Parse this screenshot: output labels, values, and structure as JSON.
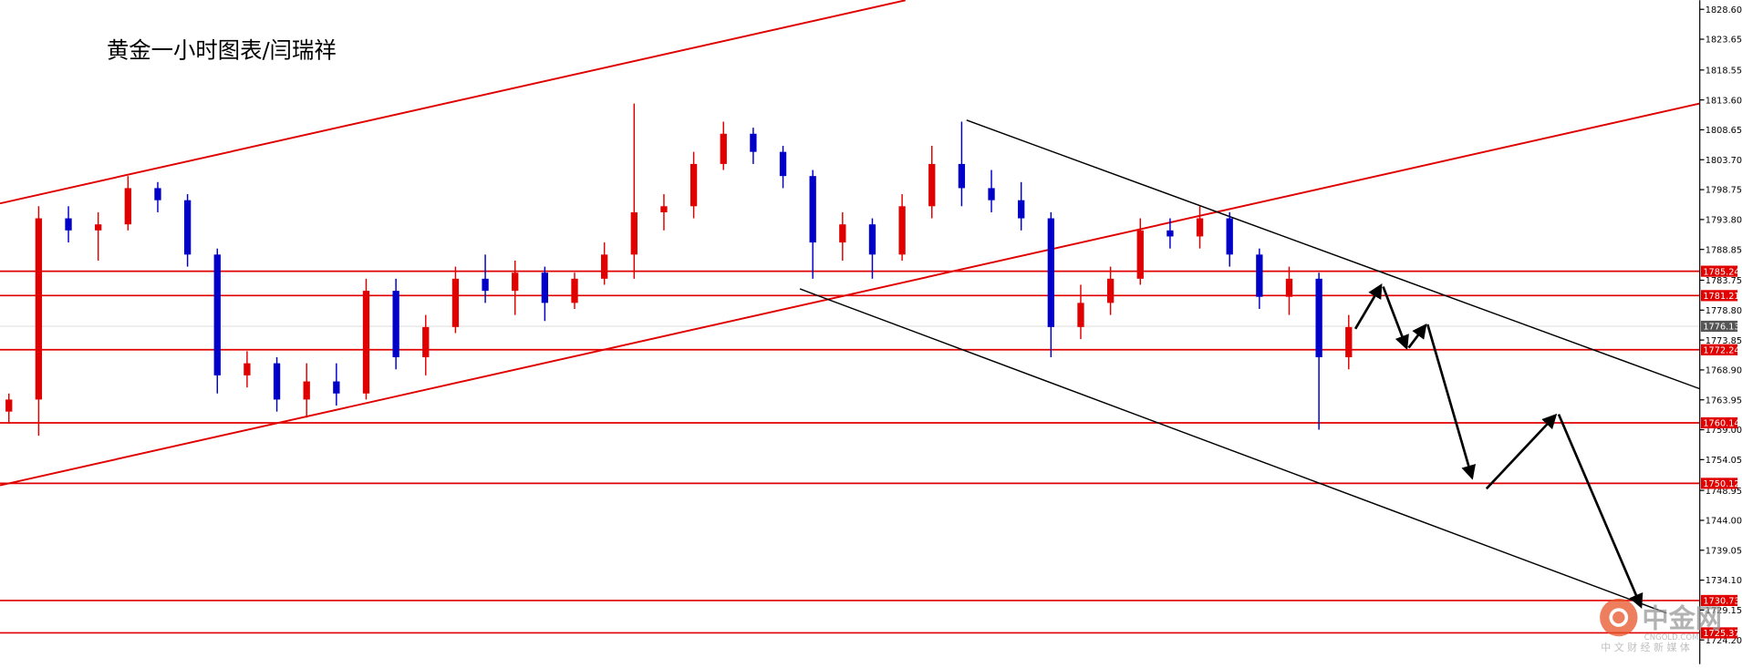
{
  "chart_data": {
    "type": "candlestick",
    "title": "黄金一小时图表/闫瑞祥",
    "watermark": {
      "brand": "中金网",
      "domain": "CNGOLD.COM",
      "tagline": "中 文 财 经 新 媒 体"
    },
    "ylim": [
      1720.2,
      1830.1
    ],
    "yticks": [
      {
        "value": 1828.6,
        "label": "1828.60"
      },
      {
        "value": 1823.65,
        "label": "1823.65"
      },
      {
        "value": 1818.55,
        "label": "1818.55"
      },
      {
        "value": 1813.6,
        "label": "1813.60"
      },
      {
        "value": 1808.65,
        "label": "1808.65"
      },
      {
        "value": 1803.7,
        "label": "1803.70"
      },
      {
        "value": 1798.75,
        "label": "1798.75"
      },
      {
        "value": 1793.8,
        "label": "1793.80"
      },
      {
        "value": 1788.85,
        "label": "1788.85"
      },
      {
        "value": 1783.75,
        "label": "1783.75"
      },
      {
        "value": 1778.8,
        "label": "1778.80"
      },
      1773.85,
      {
        "value": 1768.9,
        "label": "1768.90"
      },
      1763.95,
      {
        "value": 1759,
        "label": "1759.00"
      },
      1754.05,
      1748.95,
      {
        "value": 1744,
        "label": "1744.00"
      },
      1739.05,
      {
        "value": 1734.1,
        "label": "1734.10"
      },
      1729.15,
      {
        "value": 1724.2,
        "label": "1724.20"
      }
    ],
    "levels": [
      1785.24,
      1781.21,
      1772.24,
      1760.14,
      1750.12,
      1730.73,
      1725.37
    ],
    "level_color": "#e00000",
    "current_price": 1776.13,
    "up_color": "#e00000",
    "down_color": "#0000c8",
    "open": [
      1762,
      1764,
      1794,
      1792,
      1793,
      1799,
      1797,
      1788,
      1768,
      1770,
      1764,
      1767,
      1765,
      1782,
      1771,
      1776,
      1784,
      1782,
      1785,
      1780,
      1784,
      1788,
      1795,
      1796,
      1803,
      1808,
      1805,
      1801,
      1790,
      1793,
      1788,
      1796,
      1803,
      1799,
      1797,
      1794,
      1776,
      1780,
      1784,
      1792,
      1791,
      1794,
      1788,
      1781,
      1784,
      1771
    ],
    "high": [
      1765,
      1796,
      1796,
      1795,
      1801,
      1800,
      1798,
      1789,
      1772,
      1771,
      1770,
      1770,
      1784,
      1784,
      1778,
      1786,
      1788,
      1787,
      1786,
      1785,
      1790,
      1813,
      1798,
      1805,
      1810,
      1809,
      1806,
      1802,
      1795,
      1794,
      1798,
      1806,
      1810,
      1802,
      1800,
      1795,
      1783,
      1786,
      1794,
      1794,
      1796,
      1795,
      1789,
      1786,
      1785,
      1778
    ],
    "low": [
      1760,
      1758,
      1790,
      1787,
      1792,
      1795,
      1786,
      1765,
      1766,
      1762,
      1761,
      1763,
      1764,
      1769,
      1768,
      1775,
      1780,
      1778,
      1777,
      1779,
      1783,
      1784,
      1792,
      1794,
      1802,
      1803,
      1799,
      1784,
      1787,
      1784,
      1787,
      1794,
      1796,
      1795,
      1792,
      1771,
      1774,
      1778,
      1783,
      1789,
      1789,
      1786,
      1779,
      1778,
      1759,
      1769
    ],
    "close": [
      1764,
      1794,
      1792,
      1793,
      1799,
      1797,
      1788,
      1768,
      1770,
      1764,
      1767,
      1765,
      1782,
      1771,
      1776,
      1784,
      1782,
      1785,
      1780,
      1784,
      1788,
      1795,
      1796,
      1803,
      1808,
      1805,
      1801,
      1790,
      1793,
      1788,
      1796,
      1803,
      1799,
      1797,
      1794,
      1776,
      1780,
      1784,
      1792,
      1791,
      1794,
      1788,
      1781,
      1784,
      1771,
      1776
    ]
  }
}
